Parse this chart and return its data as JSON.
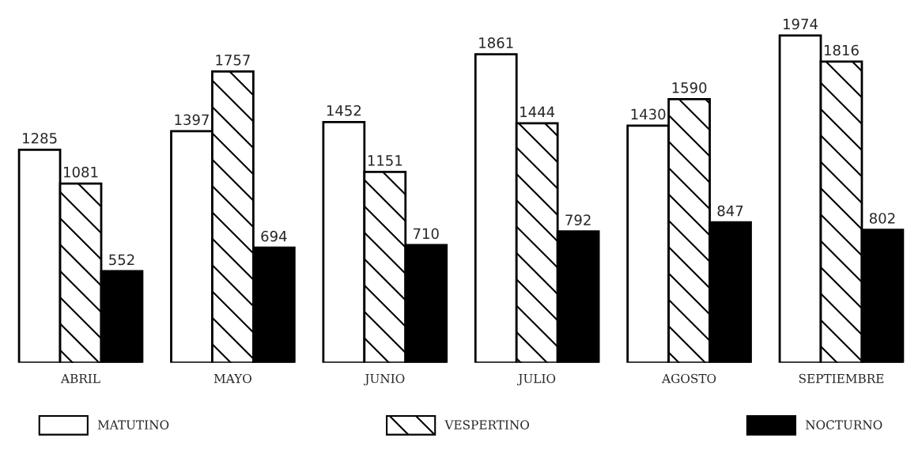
{
  "chart_data": {
    "type": "bar",
    "categories": [
      "ABRIL",
      "MAYO",
      "JUNIO",
      "JULIO",
      "AGOSTO",
      "SEPTIEMBRE"
    ],
    "series": [
      {
        "name": "MATUTINO",
        "color": "#ffffff",
        "values": [
          1285,
          1397,
          1452,
          1861,
          1430,
          1974
        ]
      },
      {
        "name": "VESPERTINO",
        "color": "#000000",
        "values": [
          1081,
          1757,
          1151,
          1444,
          1590,
          1816
        ]
      },
      {
        "name": "NOCTURNO",
        "color": "#000000",
        "values": [
          552,
          694,
          710,
          792,
          847,
          802
        ]
      }
    ],
    "data_labels": true,
    "legend": "bottom",
    "grid": false
  }
}
